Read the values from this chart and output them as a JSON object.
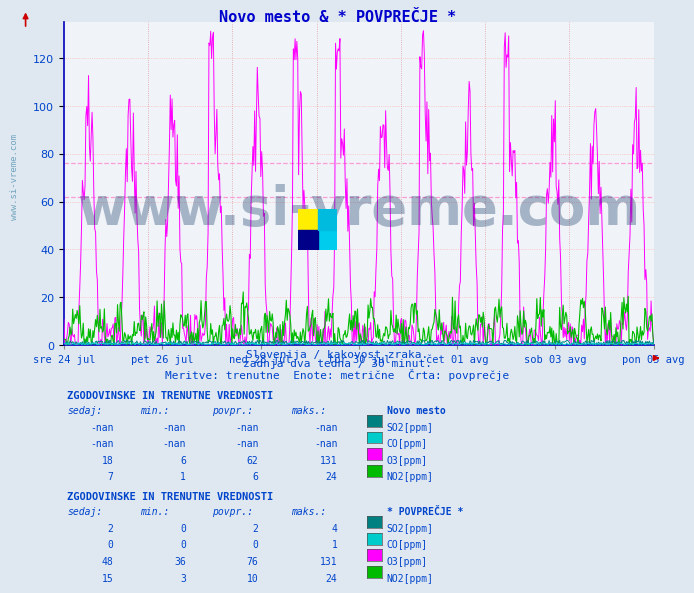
{
  "title": "Novo mesto & * POVPREČJE *",
  "title_color": "#0000cc",
  "bg_color": "#dfe8f0",
  "plot_bg_color": "#ffffff",
  "xlabel_dates": [
    "sre 24 jul",
    "pet 26 jul",
    "ned 28 jul",
    "tor 30 jul",
    "čet 01 avg",
    "sob 03 avg",
    "pon 05 avg"
  ],
  "subtitle1": "Slovenija / kakovost zraka.",
  "subtitle2": "zadnja dva tedna / 30 minut.",
  "subtitle3": "Meritve: trenutne  Enote: metrične  Črta: povprečje",
  "ylim": [
    0,
    135
  ],
  "yticks": [
    0,
    20,
    40,
    60,
    80,
    100,
    120
  ],
  "hline_pink1": 76,
  "hline_pink2": 62,
  "colors": {
    "SO2": "#008080",
    "CO": "#00cccc",
    "O3": "#ff00ff",
    "NO2": "#00bb00"
  },
  "table1_title": "ZGODOVINSKE IN TRENUTNE VREDNOSTI",
  "table1_header": "Novo mesto",
  "table1_rows": [
    [
      "-nan",
      "-nan",
      "-nan",
      "-nan",
      "SO2[ppm]",
      "#008080"
    ],
    [
      "-nan",
      "-nan",
      "-nan",
      "-nan",
      "CO[ppm]",
      "#00cccc"
    ],
    [
      "18",
      "6",
      "62",
      "131",
      "O3[ppm]",
      "#ff00ff"
    ],
    [
      "7",
      "1",
      "6",
      "24",
      "NO2[ppm]",
      "#00bb00"
    ]
  ],
  "table2_title": "ZGODOVINSKE IN TRENUTNE VREDNOSTI",
  "table2_header": "* POVPREČJE *",
  "table2_rows": [
    [
      "2",
      "0",
      "2",
      "4",
      "SO2[ppm]",
      "#008080"
    ],
    [
      "0",
      "0",
      "0",
      "1",
      "CO[ppm]",
      "#00cccc"
    ],
    [
      "48",
      "36",
      "76",
      "131",
      "O3[ppm]",
      "#ff00ff"
    ],
    [
      "15",
      "3",
      "10",
      "24",
      "NO2[ppm]",
      "#00bb00"
    ]
  ],
  "n_points": 672,
  "days": 14,
  "watermark": "www.si-vreme.com",
  "watermark_color": "#1a3a6a",
  "watermark_alpha": 0.35,
  "side_watermark": "www.si-vreme.com",
  "side_watermark_color": "#4488aa"
}
